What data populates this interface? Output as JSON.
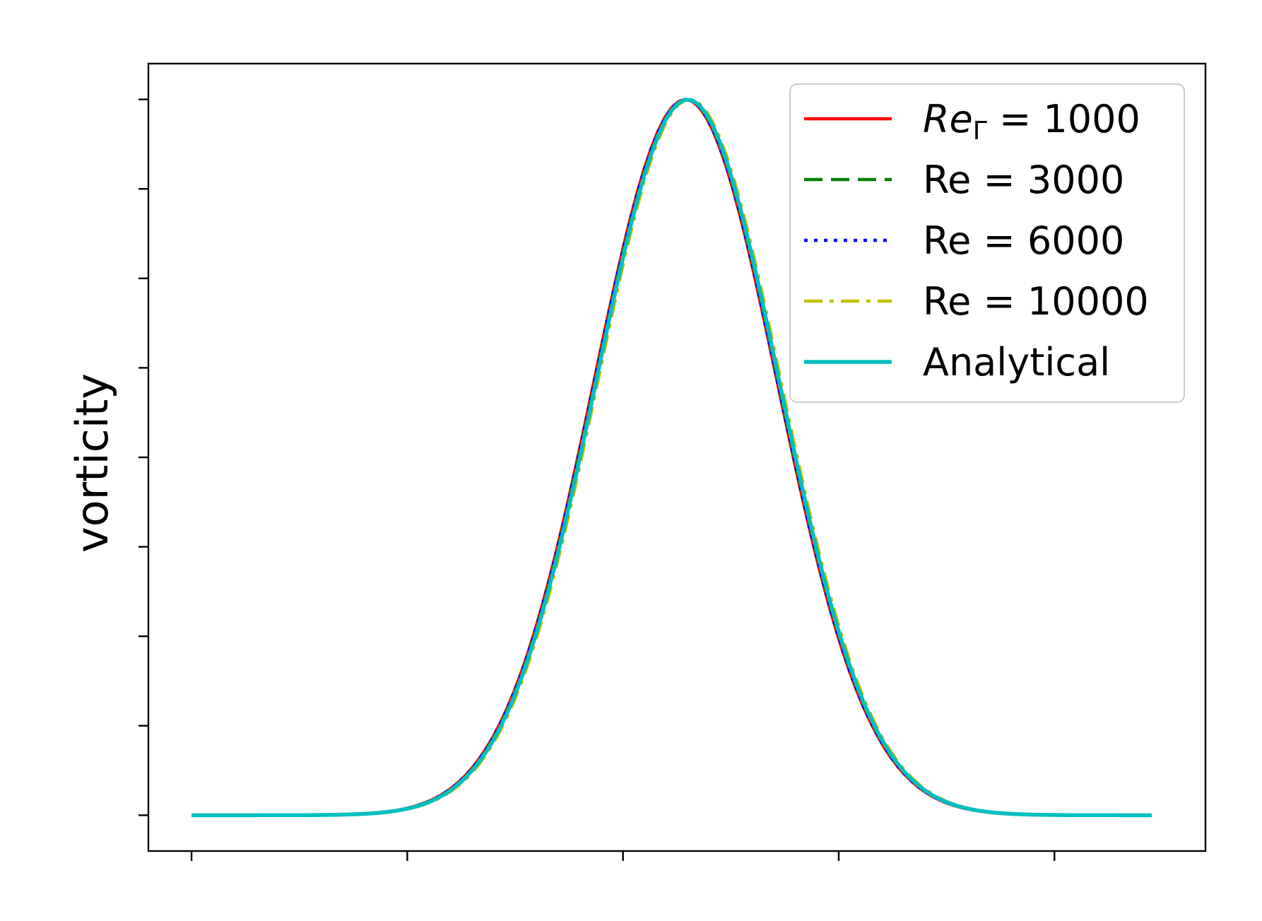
{
  "chart_data": {
    "type": "line",
    "title": "",
    "xlabel": "",
    "ylabel": "vorticity",
    "xlim": [
      -0.2,
      4.7
    ],
    "ylim": [
      -0.05,
      1.05
    ],
    "x_ticks": [
      0,
      1,
      2,
      3,
      4
    ],
    "y_ticks": [
      0,
      0.125,
      0.25,
      0.375,
      0.5,
      0.625,
      0.75,
      0.875,
      1.0
    ],
    "tick_labels_visible": false,
    "grid": false,
    "legend_placement": "top-right",
    "peak_x": 2.3,
    "width": 0.6,
    "x_range": [
      0.0,
      4.45
    ],
    "series": [
      {
        "name": "Re_Γ = 1000",
        "color": "#ff0000",
        "style": "solid",
        "x_offset": -0.01
      },
      {
        "name": "Re = 3000",
        "color": "#008000",
        "style": "dashed",
        "x_offset": -0.005
      },
      {
        "name": "Re = 6000",
        "color": "#0000ff",
        "style": "dotted",
        "x_offset": -0.008
      },
      {
        "name": "Re = 10000",
        "color": "#bfbf00",
        "style": "dashdot",
        "x_offset": 0.008
      },
      {
        "name": "Analytical",
        "color": "#00bfbf",
        "style": "solid",
        "x_offset": 0.0
      }
    ]
  },
  "legend": {
    "entries": [
      {
        "base": "Re",
        "sub": "Γ",
        "rest": " = 1000",
        "italic": true
      },
      {
        "base": "Re = 3000",
        "sub": "",
        "rest": "",
        "italic": false
      },
      {
        "base": "Re = 6000",
        "sub": "",
        "rest": "",
        "italic": false
      },
      {
        "base": "Re = 10000",
        "sub": "",
        "rest": "",
        "italic": false
      },
      {
        "base": "Analytical",
        "sub": "",
        "rest": "",
        "italic": false
      }
    ]
  }
}
